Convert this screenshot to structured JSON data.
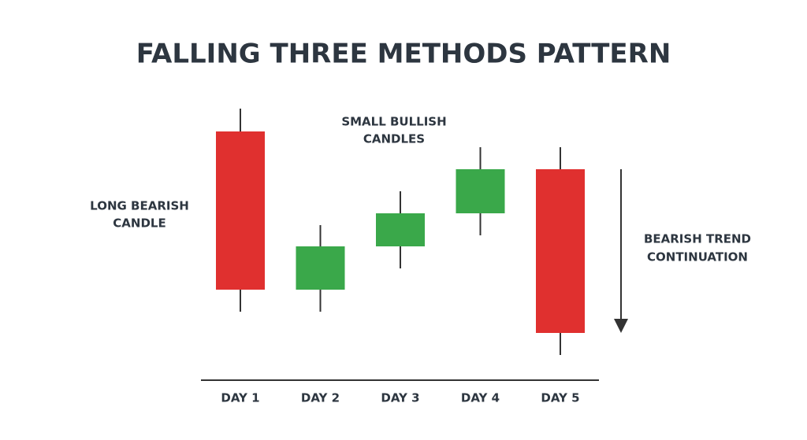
{
  "chart_data": {
    "type": "candlestick",
    "title": "FALLING THREE METHODS PATTERN",
    "categories": [
      "DAY 1",
      "DAY 2",
      "DAY 3",
      "DAY 4",
      "DAY 5"
    ],
    "open": [
      33.3,
      13.2,
      18.7,
      22.9,
      28.5
    ],
    "high": [
      36.2,
      21.4,
      25.7,
      31.3,
      31.3
    ],
    "low": [
      10.4,
      10.4,
      15.9,
      20.1,
      4.9
    ],
    "close": [
      13.2,
      18.7,
      22.9,
      28.5,
      7.7
    ],
    "up_color": "#3aa84a",
    "down_color": "#e0302f",
    "annotations": [
      {
        "lines": [
          "LONG BEARISH",
          "CANDLE"
        ]
      },
      {
        "lines": [
          "SMALL BULLISH",
          "CANDLES"
        ]
      },
      {
        "lines": [
          "BEARISH TREND",
          "CONTINUATION"
        ]
      }
    ]
  }
}
